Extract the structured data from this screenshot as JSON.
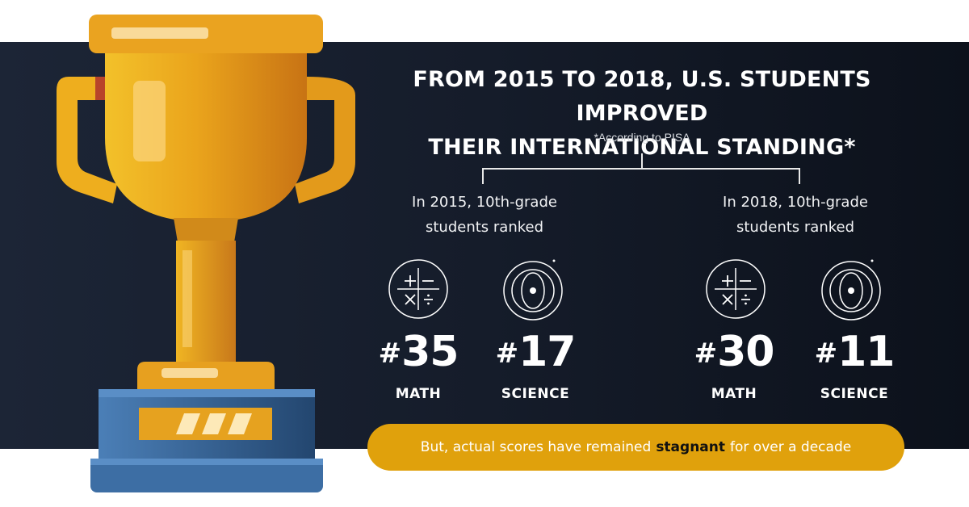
{
  "headline": {
    "line1": "FROM 2015 TO 2018, U.S. STUDENTS IMPROVED",
    "line2": "THEIR INTERNATIONAL STANDING*"
  },
  "footnote": "*According to PISA",
  "years": [
    {
      "label_line1": "In 2015, 10th-grade",
      "label_line2": "students ranked",
      "math": {
        "hash": "#",
        "rank": "35",
        "subject": "MATH"
      },
      "science": {
        "hash": "#",
        "rank": "17",
        "subject": "SCIENCE"
      }
    },
    {
      "label_line1": "In 2018, 10th-grade",
      "label_line2": "students ranked",
      "math": {
        "hash": "#",
        "rank": "30",
        "subject": "MATH"
      },
      "science": {
        "hash": "#",
        "rank": "11",
        "subject": "SCIENCE"
      }
    }
  ],
  "banner": {
    "before": "But, actual scores have remained",
    "emphasis": "stagnant",
    "after": "for over a decade"
  },
  "icons": {
    "trophy": "trophy-icon",
    "math": "math-operators-icon",
    "science": "atom-icon"
  },
  "colors": {
    "background": "#141b28",
    "accent": "#e0a10c",
    "text": "#ffffff"
  }
}
